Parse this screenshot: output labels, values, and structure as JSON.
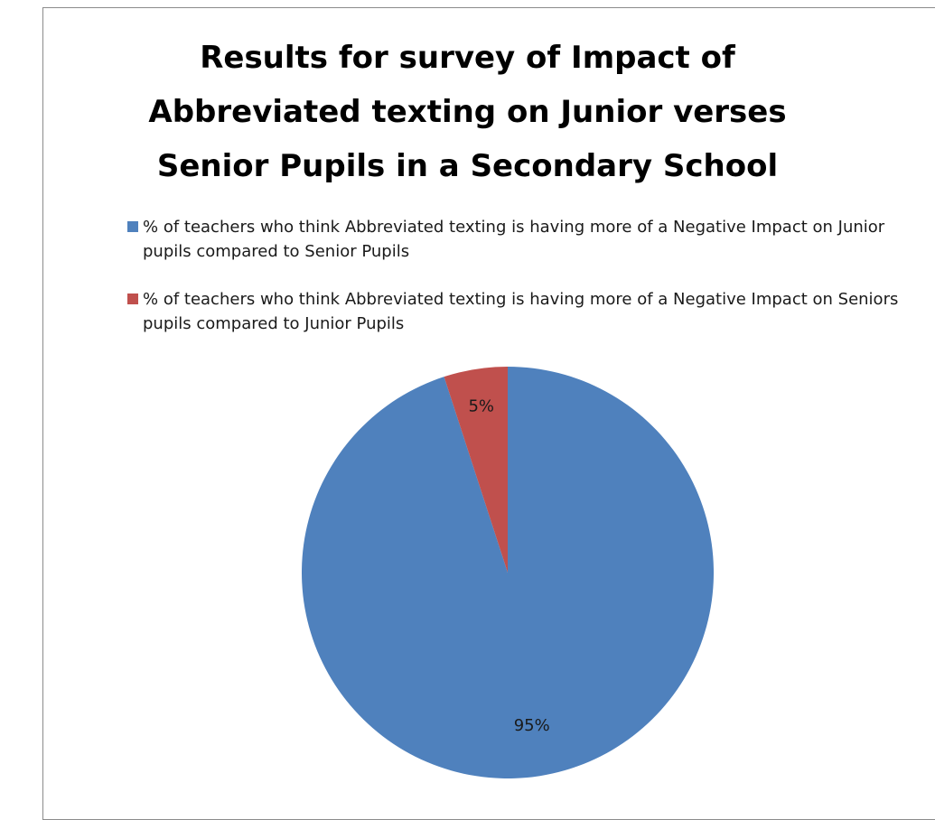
{
  "chart_data": {
    "type": "pie",
    "title": "Results for survey of Impact of Abbreviated texting on Junior verses Senior Pupils in a Secondary School",
    "title_lines": [
      "Results for survey of Impact of",
      "Abbreviated texting on Junior verses",
      "Senior Pupils in a Secondary School"
    ],
    "legend_placement": "top",
    "slices": [
      {
        "label": "% of teachers who think Abbreviated texting is having more of a Negative Impact on Junior pupils compared to Senior Pupils",
        "value": 95,
        "data_label": "95%",
        "color": "#4f81bd"
      },
      {
        "label": "% of teachers who think Abbreviated texting is having more of a Negative Impact on Seniors pupils compared to Junior Pupils",
        "value": 5,
        "data_label": "5%",
        "color": "#c0504d"
      }
    ]
  }
}
